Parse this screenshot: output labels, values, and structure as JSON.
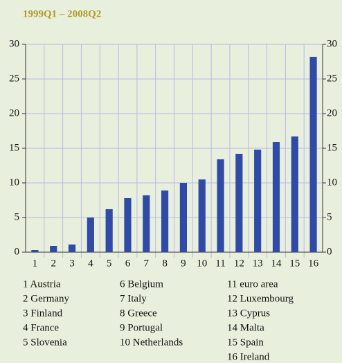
{
  "chart_data": {
    "type": "bar",
    "title": "1999Q1 – 2008Q2",
    "categories": [
      "1",
      "2",
      "3",
      "4",
      "5",
      "6",
      "7",
      "8",
      "9",
      "10",
      "11",
      "12",
      "13",
      "14",
      "15",
      "16"
    ],
    "values": [
      0.3,
      0.9,
      1.1,
      5.0,
      6.2,
      7.8,
      8.2,
      8.9,
      10.0,
      10.5,
      13.4,
      14.2,
      14.8,
      15.9,
      16.7,
      28.2
    ],
    "color": "#2f4ba6",
    "ylim": [
      0,
      30
    ],
    "yticks": [
      0,
      5,
      10,
      15,
      20,
      25,
      30
    ],
    "y2lim": [
      0,
      30
    ],
    "y2ticks": [
      0,
      5,
      10,
      15,
      20,
      25,
      30
    ],
    "grid": true,
    "country_key": [
      "1 Austria",
      "2 Germany",
      "3 Finland",
      "4 France",
      "5 Slovenia",
      "6 Belgium",
      "7 Italy",
      "8 Greece",
      "9 Portugal",
      "10 Netherlands",
      "11 euro area",
      "12 Luxembourg",
      "13 Cyprus",
      "14 Malta",
      "15 Spain",
      "16 Ireland"
    ]
  }
}
